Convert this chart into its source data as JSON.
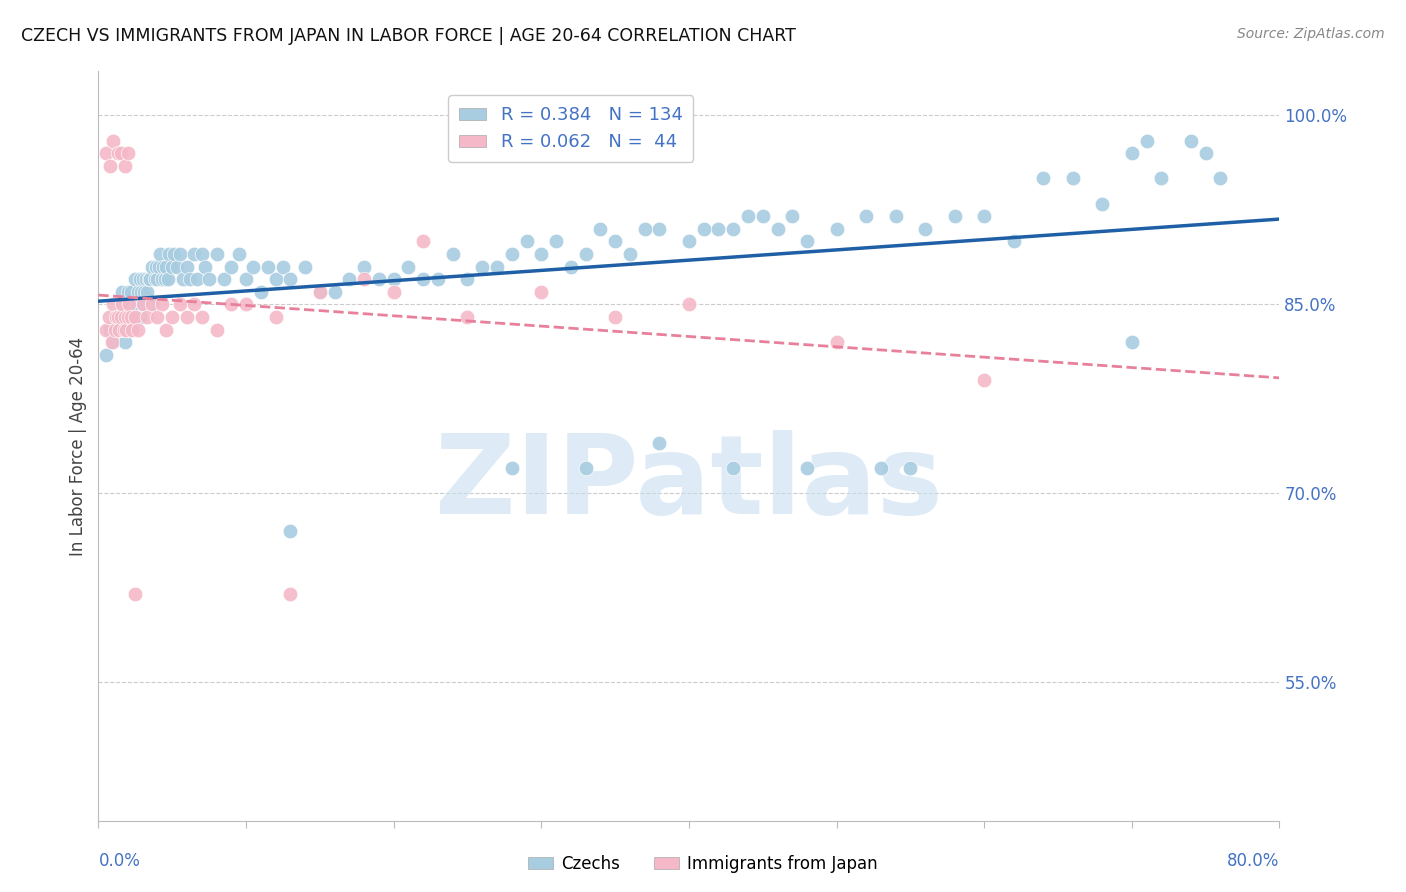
{
  "title": "CZECH VS IMMIGRANTS FROM JAPAN IN LABOR FORCE | AGE 20-64 CORRELATION CHART",
  "source": "Source: ZipAtlas.com",
  "ylabel": "In Labor Force | Age 20-64",
  "x_min": 0.0,
  "x_max": 0.8,
  "y_min": 0.44,
  "y_max": 1.035,
  "y_ticks_right": [
    0.55,
    0.7,
    0.85,
    1.0
  ],
  "y_tick_labels_right": [
    "55.0%",
    "70.0%",
    "85.0%",
    "100.0%"
  ],
  "blue_R": 0.384,
  "blue_N": 134,
  "pink_R": 0.062,
  "pink_N": 44,
  "blue_color": "#a8cce0",
  "pink_color": "#f4b8c8",
  "blue_line_color": "#1f5fa6",
  "pink_line_color": "#e8809a",
  "watermark_color": "#c8dff0",
  "legend_title_blue": "Czechs",
  "legend_title_pink": "Immigrants from Japan",
  "blue_scatter_x": [
    0.005,
    0.008,
    0.01,
    0.012,
    0.013,
    0.014,
    0.015,
    0.015,
    0.016,
    0.016,
    0.017,
    0.017,
    0.018,
    0.018,
    0.019,
    0.019,
    0.02,
    0.02,
    0.02,
    0.021,
    0.021,
    0.022,
    0.022,
    0.023,
    0.024,
    0.025,
    0.025,
    0.026,
    0.027,
    0.028,
    0.028,
    0.029,
    0.03,
    0.03,
    0.031,
    0.032,
    0.033,
    0.034,
    0.035,
    0.036,
    0.037,
    0.038,
    0.039,
    0.04,
    0.041,
    0.042,
    0.043,
    0.044,
    0.045,
    0.046,
    0.047,
    0.048,
    0.05,
    0.051,
    0.053,
    0.055,
    0.057,
    0.06,
    0.062,
    0.065,
    0.067,
    0.07,
    0.072,
    0.075,
    0.08,
    0.085,
    0.09,
    0.095,
    0.1,
    0.105,
    0.11,
    0.115,
    0.12,
    0.125,
    0.13,
    0.14,
    0.15,
    0.16,
    0.17,
    0.18,
    0.19,
    0.2,
    0.21,
    0.22,
    0.23,
    0.24,
    0.25,
    0.26,
    0.27,
    0.28,
    0.29,
    0.3,
    0.31,
    0.32,
    0.33,
    0.34,
    0.35,
    0.36,
    0.37,
    0.38,
    0.4,
    0.41,
    0.42,
    0.43,
    0.44,
    0.45,
    0.46,
    0.47,
    0.48,
    0.5,
    0.52,
    0.54,
    0.56,
    0.58,
    0.6,
    0.62,
    0.64,
    0.66,
    0.68,
    0.7,
    0.72,
    0.74,
    0.75,
    0.76,
    0.7,
    0.71,
    0.13,
    0.28,
    0.33,
    0.38,
    0.43,
    0.48,
    0.53,
    0.55
  ],
  "blue_scatter_y": [
    0.81,
    0.83,
    0.82,
    0.84,
    0.83,
    0.84,
    0.84,
    0.85,
    0.85,
    0.86,
    0.83,
    0.85,
    0.82,
    0.84,
    0.83,
    0.85,
    0.83,
    0.84,
    0.86,
    0.83,
    0.85,
    0.84,
    0.86,
    0.85,
    0.84,
    0.85,
    0.87,
    0.85,
    0.86,
    0.84,
    0.87,
    0.86,
    0.85,
    0.87,
    0.86,
    0.87,
    0.86,
    0.87,
    0.87,
    0.88,
    0.85,
    0.87,
    0.88,
    0.87,
    0.88,
    0.89,
    0.87,
    0.88,
    0.87,
    0.88,
    0.87,
    0.89,
    0.88,
    0.89,
    0.88,
    0.89,
    0.87,
    0.88,
    0.87,
    0.89,
    0.87,
    0.89,
    0.88,
    0.87,
    0.89,
    0.87,
    0.88,
    0.89,
    0.87,
    0.88,
    0.86,
    0.88,
    0.87,
    0.88,
    0.87,
    0.88,
    0.86,
    0.86,
    0.87,
    0.88,
    0.87,
    0.87,
    0.88,
    0.87,
    0.87,
    0.89,
    0.87,
    0.88,
    0.88,
    0.89,
    0.9,
    0.89,
    0.9,
    0.88,
    0.89,
    0.91,
    0.9,
    0.89,
    0.91,
    0.91,
    0.9,
    0.91,
    0.91,
    0.91,
    0.92,
    0.92,
    0.91,
    0.92,
    0.9,
    0.91,
    0.92,
    0.92,
    0.91,
    0.92,
    0.92,
    0.9,
    0.95,
    0.95,
    0.93,
    0.97,
    0.95,
    0.98,
    0.97,
    0.95,
    0.82,
    0.98,
    0.67,
    0.72,
    0.72,
    0.74,
    0.72,
    0.72,
    0.72,
    0.72
  ],
  "pink_scatter_x": [
    0.005,
    0.007,
    0.009,
    0.01,
    0.011,
    0.012,
    0.013,
    0.014,
    0.015,
    0.016,
    0.017,
    0.018,
    0.019,
    0.02,
    0.021,
    0.022,
    0.023,
    0.025,
    0.027,
    0.03,
    0.033,
    0.036,
    0.04,
    0.043,
    0.046,
    0.05,
    0.055,
    0.06,
    0.065,
    0.07,
    0.08,
    0.09,
    0.1,
    0.12,
    0.15,
    0.18,
    0.2,
    0.22,
    0.25,
    0.3,
    0.35,
    0.4,
    0.5,
    0.6
  ],
  "pink_scatter_y": [
    0.83,
    0.84,
    0.82,
    0.85,
    0.83,
    0.84,
    0.84,
    0.83,
    0.84,
    0.85,
    0.83,
    0.84,
    0.83,
    0.84,
    0.85,
    0.84,
    0.83,
    0.84,
    0.83,
    0.85,
    0.84,
    0.85,
    0.84,
    0.85,
    0.83,
    0.84,
    0.85,
    0.84,
    0.85,
    0.84,
    0.83,
    0.85,
    0.85,
    0.84,
    0.86,
    0.87,
    0.86,
    0.9,
    0.84,
    0.86,
    0.84,
    0.85,
    0.82,
    0.79
  ],
  "pink_outliers_x": [
    0.005,
    0.008,
    0.01,
    0.013,
    0.015,
    0.018,
    0.02,
    0.025,
    0.13
  ],
  "pink_outliers_y": [
    0.97,
    0.96,
    0.98,
    0.97,
    0.97,
    0.96,
    0.97,
    0.62,
    0.62
  ]
}
